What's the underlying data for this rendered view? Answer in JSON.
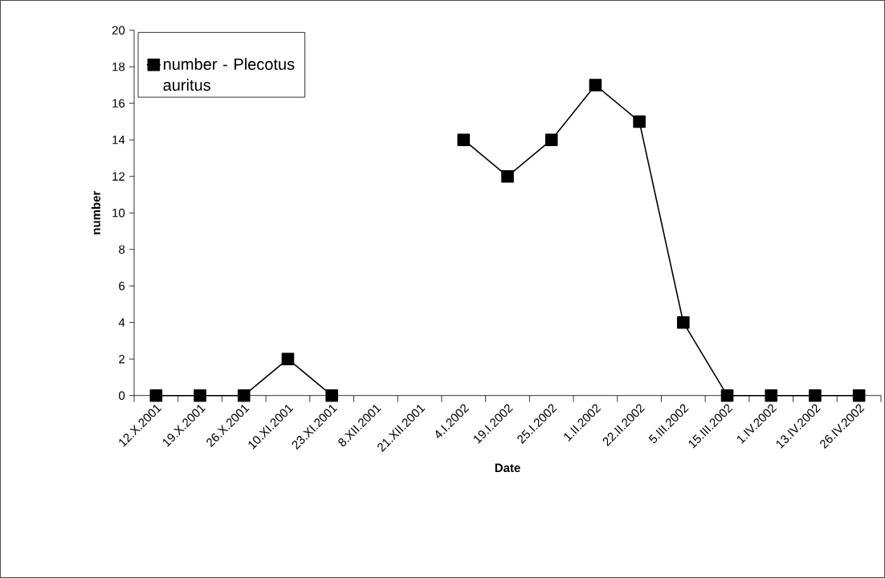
{
  "chart_data": {
    "type": "line",
    "xlabel": "Date",
    "ylabel": "number",
    "categories": [
      "12.X.2001",
      "19.X.2001",
      "26.X.2001",
      "10.XI.2001",
      "23.XI.2001",
      "8.XII.2001",
      "21.XII.2001",
      "4.I.2002",
      "19.I.2002",
      "25.I.2002",
      "1.II.2002",
      "22.II.2002",
      "5.III.2002",
      "15.III.2002",
      "1.IV.2002",
      "13.IV.2002",
      "26.IV.2002"
    ],
    "series": [
      {
        "name": "number - Plecotus auritus",
        "color": "#000000",
        "values": [
          0,
          0,
          0,
          2,
          0,
          null,
          null,
          14,
          12,
          14,
          17,
          15,
          4,
          0,
          0,
          0,
          0
        ]
      }
    ],
    "ylim": [
      0,
      20
    ],
    "yticks": [
      0,
      2,
      4,
      6,
      8,
      10,
      12,
      14,
      16,
      18,
      20
    ],
    "legend": "top left",
    "marker": "square",
    "line_style": "solid",
    "grid": false
  }
}
